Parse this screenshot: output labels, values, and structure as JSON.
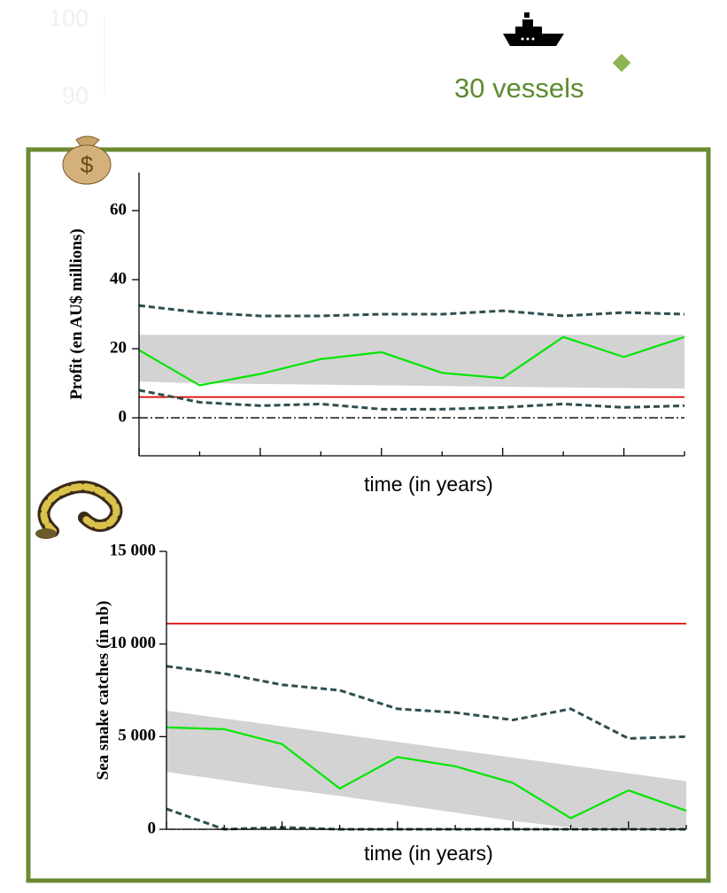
{
  "annotation": "30 vessels",
  "chart_data": [
    {
      "type": "line",
      "y_label": "Profit (en AU$ millions)",
      "x_label": "time (in years)",
      "categories": [
        null,
        null,
        null,
        null,
        null,
        null,
        null,
        null,
        null,
        null
      ],
      "ylim": [
        -11,
        71
      ],
      "yticks": [
        0,
        20,
        40,
        60
      ],
      "median": {
        "color": "#00e600",
        "values": [
          19.6,
          9.4,
          12.7,
          17,
          19,
          13,
          11.5,
          23.4,
          17.6,
          23.4
        ]
      },
      "band": {
        "color": "#d3d3d3",
        "upper": [
          24,
          24,
          24,
          24,
          24,
          24,
          24,
          24,
          24,
          24
        ],
        "lower": [
          10.5,
          10,
          9.8,
          9.6,
          9.4,
          9.2,
          9,
          8.8,
          8.6,
          8.5
        ]
      },
      "quantiles": {
        "color": "#2f4f4f",
        "upper": [
          32.5,
          30.5,
          29.5,
          29.5,
          30,
          30,
          31,
          29.5,
          30.5,
          30
        ],
        "lower": [
          8,
          4.5,
          3.5,
          4,
          2.5,
          2.5,
          3,
          4,
          3,
          3.5
        ]
      },
      "reference": {
        "color": "#e00000",
        "value": 6
      },
      "zero_line": true
    },
    {
      "type": "line",
      "y_label": "Sea snake catches (in nb)",
      "x_label": "time (in years)",
      "categories": [
        null,
        null,
        null,
        null,
        null,
        null,
        null,
        null,
        null,
        null
      ],
      "ylim": [
        0,
        15000
      ],
      "yticks": [
        {
          "value": 0,
          "label": "0"
        },
        {
          "value": 5000,
          "label": "5 000"
        },
        {
          "value": 10000,
          "label": "10 000"
        },
        {
          "value": 15000,
          "label": "15 000"
        }
      ],
      "median": {
        "color": "#00e600",
        "values": [
          5500,
          5400,
          4600,
          2200,
          3900,
          3400,
          2500,
          600,
          2100,
          1000
        ]
      },
      "band": {
        "color": "#d3d3d3",
        "upper": [
          6400,
          5980,
          5560,
          5130,
          4710,
          4290,
          3870,
          3440,
          3020,
          2600
        ],
        "lower": [
          3100,
          2650,
          2200,
          1800,
          1350,
          900,
          450,
          100,
          0,
          0
        ]
      },
      "quantiles": {
        "color": "#2f4f4f",
        "upper": [
          8800,
          8400,
          7800,
          7500,
          6500,
          6300,
          5900,
          6500,
          4900,
          5000
        ],
        "lower": [
          1100,
          0,
          100,
          0,
          0,
          0,
          0,
          0,
          0,
          0
        ]
      },
      "reference": {
        "color": "#e00000",
        "value": 11100
      },
      "zero_line": true
    },
    {
      "type": "axis",
      "ylim": [
        89.5,
        100.5
      ],
      "yticks": [
        90,
        100
      ]
    }
  ]
}
